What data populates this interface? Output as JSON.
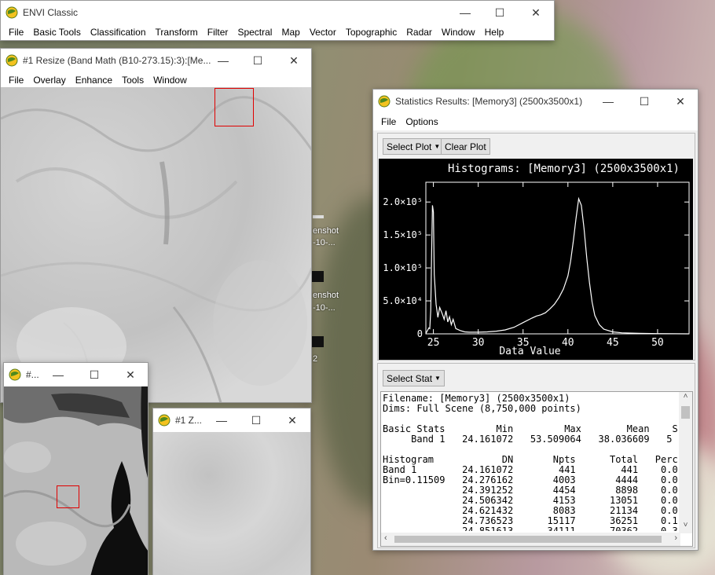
{
  "desktop": {
    "labels": [
      "enshot",
      "-10-...",
      "enshot",
      "-10-...",
      "2"
    ]
  },
  "envi_main": {
    "title": "ENVI Classic",
    "menus": [
      "File",
      "Basic Tools",
      "Classification",
      "Transform",
      "Filter",
      "Spectral",
      "Map",
      "Vector",
      "Topographic",
      "Radar",
      "Window",
      "Help"
    ]
  },
  "image_win": {
    "title": "#1 Resize (Band Math (B10-273.15):3):[Me...",
    "menus": [
      "File",
      "Overlay",
      "Enhance",
      "Tools",
      "Window"
    ]
  },
  "scroll_win": {
    "title": "#..."
  },
  "zoom_win": {
    "title": "#1 Z..."
  },
  "stats": {
    "title": "Statistics Results: [Memory3] (2500x3500x1)",
    "menus": [
      "File",
      "Options"
    ],
    "select_plot": "Select Plot",
    "clear_plot": "Clear Plot",
    "select_stat": "Select Stat",
    "text_lines": [
      "Filename: [Memory3] (2500x3500x1)",
      "Dims: Full Scene (8,750,000 points)",
      "",
      "Basic Stats         Min         Max        Mean    S",
      "     Band 1   24.161072   53.509064   38.036609   5",
      "",
      "Histogram            DN       Npts      Total   Perc",
      "Band 1        24.161072        441        441    0.0",
      "Bin=0.11509   24.276162       4003       4444    0.0",
      "              24.391252       4454       8898    0.0",
      "              24.506342       4153      13051    0.0",
      "              24.621432       8083      21134    0.0",
      "              24.736523      15117      36251    0.1",
      "              24.851613      34111      70362    0.3"
    ]
  },
  "chart_data": {
    "type": "line",
    "title": "Histograms: [Memory3] (2500x3500x1)",
    "xlabel": "Data Value",
    "ylabel": "",
    "xlim": [
      24.16,
      53.51
    ],
    "ylim": [
      0,
      230000
    ],
    "x_ticks": [
      "25",
      "30",
      "35",
      "40",
      "45",
      "50"
    ],
    "y_ticks": [
      "0",
      "5.0×10⁴",
      "1.0×10⁵",
      "1.5×10⁵",
      "2.0×10⁵"
    ],
    "series": [
      {
        "x": [
          24.16,
          24.3,
          24.5,
          24.6,
          24.7,
          24.8,
          24.9,
          25.0,
          25.1,
          25.3,
          25.5,
          25.7,
          26.0,
          26.2,
          26.4,
          26.6,
          26.8,
          27.0,
          27.2,
          27.5,
          28.0,
          28.5,
          29.0,
          30.0,
          31.0,
          32.0,
          33.0,
          34.0,
          35.0,
          36.0,
          36.5,
          37.0,
          37.5,
          38.0,
          38.5,
          39.0,
          39.5,
          40.0,
          40.3,
          40.6,
          40.9,
          41.2,
          41.5,
          41.8,
          42.1,
          42.4,
          42.7,
          43.0,
          43.5,
          44.0,
          45.0,
          46.0,
          48.0,
          50.0,
          52.0,
          53.5
        ],
        "y": [
          500,
          4000,
          9000,
          8000,
          35000,
          120000,
          195000,
          185000,
          90000,
          45000,
          25000,
          40000,
          30000,
          22000,
          35000,
          18000,
          26000,
          14000,
          22000,
          8000,
          5000,
          3000,
          2500,
          2500,
          3000,
          4000,
          6000,
          10000,
          17000,
          24000,
          27000,
          29000,
          32000,
          38000,
          45000,
          55000,
          68000,
          88000,
          110000,
          140000,
          175000,
          205000,
          195000,
          160000,
          115000,
          78000,
          48000,
          28000,
          14000,
          7000,
          3000,
          1500,
          700,
          300,
          100,
          50
        ]
      }
    ]
  }
}
